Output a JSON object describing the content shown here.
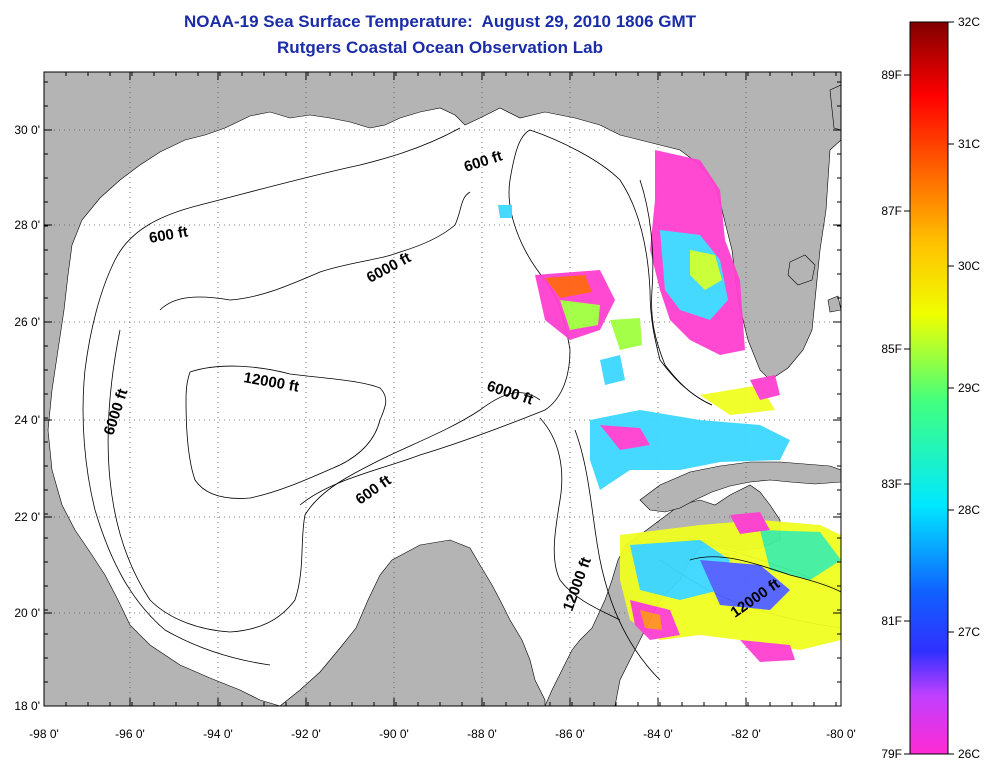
{
  "header": {
    "title": "NOAA-19 Sea Surface Temperature:  August 29, 2010 1806 GMT",
    "subtitle": "Rutgers Coastal Ocean Observation Lab"
  },
  "axes": {
    "x_ticks": [
      "-98 0'",
      "-96 0'",
      "-94 0'",
      "-92 0'",
      "-90 0'",
      "-88 0'",
      "-86 0'",
      "-84 0'",
      "-82 0'",
      "-80 0'"
    ],
    "y_ticks": [
      "30 0'",
      "28 0'",
      "26 0'",
      "24 0'",
      "22 0'",
      "20 0'",
      "18 0'"
    ]
  },
  "contour_labels": [
    "600 ft",
    "600 ft",
    "600 ft",
    "6000 ft",
    "6000 ft",
    "6000 ft",
    "12000 ft",
    "12000 ft",
    "12000 ft"
  ],
  "colorbar": {
    "celsius": [
      "32C",
      "31C",
      "30C",
      "29C",
      "28C",
      "27C",
      "26C"
    ],
    "fahrenheit": [
      "89F",
      "87F",
      "85F",
      "83F",
      "81F",
      "79F"
    ]
  },
  "colors": {
    "title": "#1a2ca8",
    "land": "#b4b4b4",
    "ocean": "#ffffff"
  }
}
